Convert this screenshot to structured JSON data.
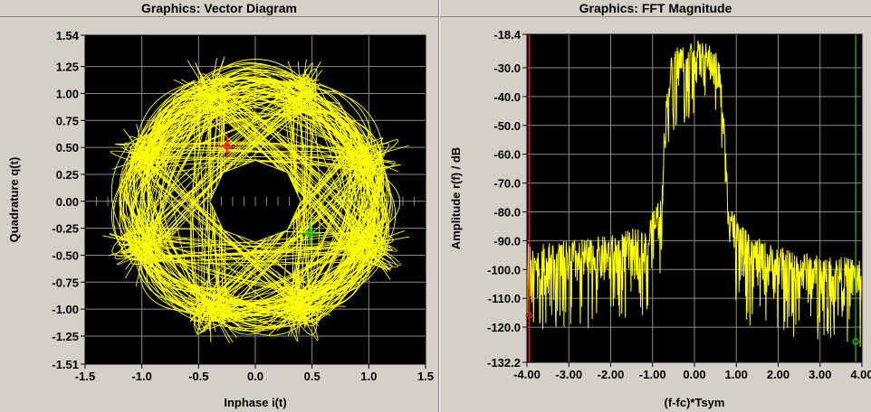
{
  "charts": [
    {
      "panel_title": "Graphics: Vector Diagram",
      "xlabel": "Inphase i(t)",
      "ylabel": "Quadrature q(t)",
      "x_ticks": [
        "-1.5",
        "-1.0",
        "-0.5",
        "0.0",
        "0.5",
        "1.0",
        "1.5"
      ],
      "y_ticks": [
        "1.54",
        "1.25",
        "1.00",
        "0.75",
        "0.50",
        "0.25",
        "0.00",
        "-0.25",
        "-0.50",
        "-0.75",
        "-1.00",
        "-1.25",
        "-1.51"
      ]
    },
    {
      "panel_title": "Graphics: FFT Magnitude",
      "xlabel": "(f-fc)*Tsym",
      "ylabel": "Amplitude r(f) / dB",
      "x_ticks": [
        "-4.00",
        "-3.00",
        "-2.00",
        "-1.00",
        "0.00",
        "1.00",
        "2.00",
        "3.00",
        "4.00"
      ],
      "y_ticks": [
        "-18.4",
        "-30.0",
        "-40.0",
        "-50.0",
        "-60.0",
        "-70.0",
        "-80.0",
        "-90.0",
        "-100.0",
        "-110.0",
        "-120.0",
        "-132.2"
      ]
    }
  ],
  "chart_data": [
    {
      "type": "scatter",
      "title": "Graphics: Vector Diagram",
      "xlabel": "Inphase i(t)",
      "ylabel": "Quadrature q(t)",
      "xlim": [
        -1.5,
        1.5
      ],
      "ylim": [
        -1.51,
        1.54
      ],
      "grid": true,
      "trace_color": "#ffff00",
      "background": "#000000",
      "constellation_points": 8,
      "ring_radius": 1.05,
      "inner_hole_radius": 0.4,
      "markers": [
        {
          "name": "marker-1",
          "color": "#ff2020",
          "x": -0.25,
          "y": 0.51
        },
        {
          "name": "marker-2",
          "color": "#20c020",
          "x": 0.48,
          "y": -0.3
        }
      ]
    },
    {
      "type": "line",
      "title": "Graphics: FFT Magnitude",
      "xlabel": "(f-fc)*Tsym",
      "ylabel": "Amplitude r(f) / dB",
      "xlim": [
        -4.0,
        4.0
      ],
      "ylim": [
        -132.2,
        -18.4
      ],
      "grid": true,
      "trace_color": "#ffff00",
      "background": "#000000",
      "envelope": {
        "x": [
          -4.0,
          -3.0,
          -2.0,
          -1.5,
          -1.2,
          -1.0,
          -0.8,
          -0.7,
          -0.6,
          -0.5,
          -0.4,
          -0.2,
          0.0,
          0.2,
          0.4,
          0.5,
          0.6,
          0.7,
          0.8,
          1.0,
          1.2,
          1.5,
          2.0,
          3.0,
          4.0
        ],
        "upper": [
          -91,
          -90,
          -88,
          -86,
          -84,
          -80,
          -72,
          -45,
          -28,
          -24,
          -22,
          -21,
          -20,
          -21,
          -22,
          -24,
          -28,
          -45,
          -72,
          -82,
          -86,
          -89,
          -92,
          -95,
          -96
        ],
        "lower": [
          -110,
          -109,
          -108,
          -106,
          -104,
          -100,
          -90,
          -60,
          -44,
          -40,
          -39,
          -38,
          -37,
          -38,
          -39,
          -40,
          -44,
          -60,
          -90,
          -100,
          -106,
          -110,
          -112,
          -114,
          -115
        ]
      },
      "markers": [
        {
          "name": "marker-1",
          "color": "#ff2020",
          "x": -3.95,
          "y": -116
        },
        {
          "name": "marker-2",
          "color": "#20c020",
          "x": 3.85,
          "y": -125
        }
      ]
    }
  ]
}
